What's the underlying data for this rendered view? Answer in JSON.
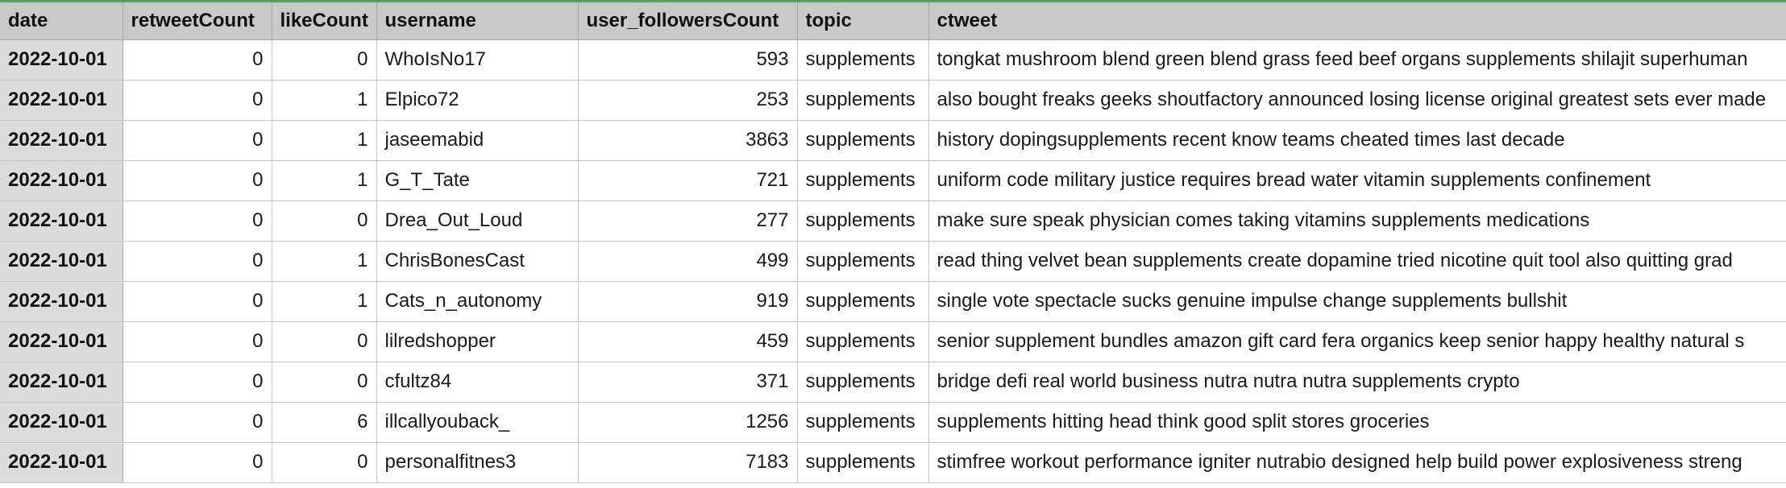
{
  "columns": [
    "date",
    "retweetCount",
    "likeCount",
    "username",
    "user_followersCount",
    "topic",
    "ctweet"
  ],
  "rows": [
    [
      "2022-10-01",
      "0",
      "0",
      "WhoIsNo17",
      "593",
      "supplements",
      "tongkat mushroom blend green blend grass feed beef organs supplements shilajit superhuman"
    ],
    [
      "2022-10-01",
      "0",
      "1",
      "Elpico72",
      "253",
      "supplements",
      "also bought freaks geeks shoutfactory announced losing license original greatest sets ever made"
    ],
    [
      "2022-10-01",
      "0",
      "1",
      "jaseemabid",
      "3863",
      "supplements",
      "history dopingsupplements recent know teams cheated times last decade"
    ],
    [
      "2022-10-01",
      "0",
      "1",
      "G_T_Tate",
      "721",
      "supplements",
      "uniform code military justice requires bread water vitamin supplements confinement"
    ],
    [
      "2022-10-01",
      "0",
      "0",
      "Drea_Out_Loud",
      "277",
      "supplements",
      "make sure speak physician comes taking vitamins supplements medications"
    ],
    [
      "2022-10-01",
      "0",
      "1",
      "ChrisBonesCast",
      "499",
      "supplements",
      "read thing velvet bean supplements create dopamine tried nicotine quit tool also quitting grad"
    ],
    [
      "2022-10-01",
      "0",
      "1",
      "Cats_n_autonomy",
      "919",
      "supplements",
      "single vote spectacle sucks genuine impulse change supplements bullshit"
    ],
    [
      "2022-10-01",
      "0",
      "0",
      "lilredshopper",
      "459",
      "supplements",
      "senior supplement bundles amazon gift card fera organics keep senior happy healthy natural s"
    ],
    [
      "2022-10-01",
      "0",
      "0",
      "cfultz84",
      "371",
      "supplements",
      "bridge defi real world business nutra nutra nutra supplements crypto"
    ],
    [
      "2022-10-01",
      "0",
      "6",
      "illcallyouback_",
      "1256",
      "supplements",
      "supplements hitting head think good split stores groceries"
    ],
    [
      "2022-10-01",
      "0",
      "0",
      "personalfitnes3",
      "7183",
      "supplements",
      "stimfree workout performance igniter nutrabio designed help build power explosiveness streng"
    ]
  ]
}
